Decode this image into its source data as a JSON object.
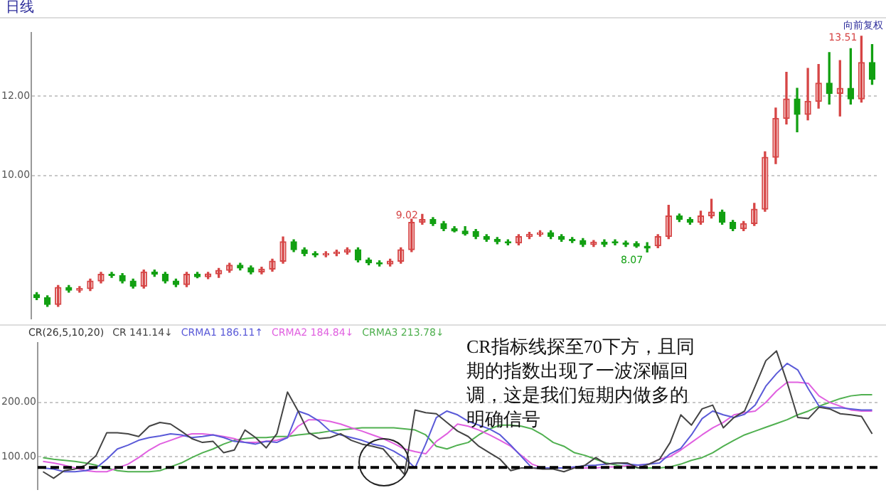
{
  "chart_data": [
    {
      "type": "candlestick",
      "title": "日线",
      "annotations": [
        "向前复权",
        "13.51",
        "9.02",
        "8.07"
      ],
      "categories": [
        null,
        null,
        null,
        null,
        null,
        null,
        null,
        null,
        null,
        null,
        null,
        null,
        null,
        null,
        null,
        null,
        null,
        null,
        null,
        null,
        null,
        null,
        null,
        null,
        null,
        null,
        null,
        null,
        null,
        null,
        null,
        null,
        null,
        null,
        null,
        null,
        null,
        null,
        null,
        null,
        null,
        null,
        null,
        null,
        null,
        null,
        null,
        null,
        null,
        null,
        null,
        null,
        null,
        null,
        null,
        null,
        null,
        null,
        null,
        null,
        null,
        null,
        null,
        null,
        null,
        null,
        null,
        null,
        null,
        null,
        null,
        null,
        null,
        null,
        null,
        null,
        null,
        null,
        null
      ],
      "ohlc": [
        [
          7.0,
          7.05,
          6.87,
          6.92
        ],
        [
          6.92,
          6.97,
          6.7,
          6.75
        ],
        [
          6.75,
          7.23,
          6.7,
          7.18
        ],
        [
          7.18,
          7.23,
          7.06,
          7.11
        ],
        [
          7.11,
          7.2,
          7.06,
          7.15
        ],
        [
          7.15,
          7.39,
          7.1,
          7.34
        ],
        [
          7.34,
          7.56,
          7.29,
          7.51
        ],
        [
          7.51,
          7.56,
          7.43,
          7.48
        ],
        [
          7.48,
          7.53,
          7.29,
          7.34
        ],
        [
          7.34,
          7.39,
          7.16,
          7.21
        ],
        [
          7.21,
          7.62,
          7.16,
          7.57
        ],
        [
          7.57,
          7.62,
          7.46,
          7.51
        ],
        [
          7.51,
          7.56,
          7.29,
          7.34
        ],
        [
          7.34,
          7.39,
          7.2,
          7.25
        ],
        [
          7.25,
          7.56,
          7.2,
          7.51
        ],
        [
          7.51,
          7.56,
          7.42,
          7.45
        ],
        [
          7.45,
          7.56,
          7.4,
          7.52
        ],
        [
          7.52,
          7.66,
          7.43,
          7.61
        ],
        [
          7.61,
          7.79,
          7.56,
          7.74
        ],
        [
          7.74,
          7.79,
          7.62,
          7.67
        ],
        [
          7.67,
          7.72,
          7.52,
          7.57
        ],
        [
          7.57,
          7.69,
          7.52,
          7.64
        ],
        [
          7.64,
          7.89,
          7.59,
          7.84
        ],
        [
          7.84,
          8.45,
          7.79,
          8.33
        ],
        [
          8.33,
          8.38,
          8.08,
          8.13
        ],
        [
          8.13,
          8.18,
          7.98,
          8.03
        ],
        [
          8.03,
          8.08,
          7.95,
          8.0
        ],
        [
          8.0,
          8.08,
          7.95,
          8.03
        ],
        [
          8.03,
          8.12,
          7.98,
          8.07
        ],
        [
          8.07,
          8.18,
          8.02,
          8.13
        ],
        [
          8.13,
          8.18,
          7.82,
          7.87
        ],
        [
          7.87,
          7.92,
          7.75,
          7.8
        ],
        [
          7.8,
          7.85,
          7.72,
          7.77
        ],
        [
          7.77,
          7.89,
          7.72,
          7.84
        ],
        [
          7.84,
          8.18,
          7.79,
          8.13
        ],
        [
          8.13,
          8.9,
          8.08,
          8.82
        ],
        [
          8.82,
          9.02,
          8.77,
          8.89
        ],
        [
          8.89,
          8.94,
          8.74,
          8.79
        ],
        [
          8.79,
          8.84,
          8.61,
          8.66
        ],
        [
          8.66,
          8.71,
          8.58,
          8.6
        ],
        [
          8.6,
          8.71,
          8.5,
          8.53
        ],
        [
          8.59,
          8.64,
          8.41,
          8.46
        ],
        [
          8.46,
          8.51,
          8.34,
          8.39
        ],
        [
          8.39,
          8.44,
          8.28,
          8.33
        ],
        [
          8.33,
          8.38,
          8.25,
          8.3
        ],
        [
          8.3,
          8.51,
          8.25,
          8.46
        ],
        [
          8.46,
          8.57,
          8.41,
          8.52
        ],
        [
          8.52,
          8.61,
          8.47,
          8.56
        ],
        [
          8.56,
          8.61,
          8.41,
          8.46
        ],
        [
          8.46,
          8.51,
          8.34,
          8.39
        ],
        [
          8.39,
          8.44,
          8.31,
          8.36
        ],
        [
          8.36,
          8.41,
          8.21,
          8.26
        ],
        [
          8.26,
          8.36,
          8.21,
          8.32
        ],
        [
          8.32,
          8.38,
          8.21,
          8.27
        ],
        [
          8.33,
          8.38,
          8.25,
          8.3
        ],
        [
          8.3,
          8.35,
          8.21,
          8.26
        ],
        [
          8.28,
          8.33,
          8.19,
          8.22
        ],
        [
          8.22,
          8.31,
          8.07,
          8.17
        ],
        [
          8.23,
          8.51,
          8.18,
          8.46
        ],
        [
          8.46,
          9.25,
          8.41,
          8.98
        ],
        [
          8.98,
          9.03,
          8.84,
          8.89
        ],
        [
          8.89,
          8.94,
          8.77,
          8.82
        ],
        [
          8.82,
          9.1,
          8.77,
          8.98
        ],
        [
          8.98,
          9.4,
          8.93,
          9.08
        ],
        [
          9.08,
          9.13,
          8.77,
          8.82
        ],
        [
          8.82,
          8.87,
          8.61,
          8.66
        ],
        [
          8.66,
          8.84,
          8.61,
          8.79
        ],
        [
          8.79,
          9.3,
          8.74,
          9.15
        ],
        [
          9.15,
          10.6,
          9.1,
          10.46
        ],
        [
          10.46,
          11.7,
          10.3,
          11.44
        ],
        [
          11.44,
          12.6,
          11.3,
          11.93
        ],
        [
          11.93,
          12.2,
          11.1,
          11.54
        ],
        [
          11.54,
          12.7,
          11.4,
          11.87
        ],
        [
          11.87,
          12.8,
          11.7,
          12.33
        ],
        [
          12.33,
          13.1,
          11.8,
          12.07
        ],
        [
          12.07,
          12.9,
          11.5,
          12.2
        ],
        [
          12.2,
          13.2,
          11.8,
          11.93
        ],
        [
          11.93,
          13.51,
          11.85,
          12.85
        ],
        [
          12.85,
          13.3,
          12.3,
          12.43
        ]
      ],
      "ylim": [
        6.4,
        13.6
      ],
      "yticks": [
        {
          "value": 10,
          "label": "10.00"
        },
        {
          "value": 12,
          "label": "12.00"
        }
      ],
      "grid": "y",
      "tick_labels": "y"
    },
    {
      "type": "line",
      "legend_title": "CR(26,5,10,20)",
      "legend": "top left",
      "annotations": [
        "CR指标线探至70下方，且同期的指数出现了一波深幅回调，这是我们短期内做多的明确信号"
      ],
      "categories": [
        null,
        null,
        null,
        null,
        null,
        null,
        null,
        null,
        null,
        null,
        null,
        null,
        null,
        null,
        null,
        null,
        null,
        null,
        null,
        null,
        null,
        null,
        null,
        null,
        null,
        null,
        null,
        null,
        null,
        null,
        null,
        null,
        null,
        null,
        null,
        null,
        null,
        null,
        null,
        null,
        null,
        null,
        null,
        null,
        null,
        null,
        null,
        null,
        null,
        null,
        null,
        null,
        null,
        null,
        null,
        null,
        null,
        null,
        null,
        null,
        null,
        null,
        null,
        null,
        null,
        null,
        null,
        null,
        null,
        null,
        null,
        null,
        null,
        null,
        null,
        null,
        null,
        null,
        null
      ],
      "series": [
        {
          "name": "CR 141.14↓",
          "color": "#444444",
          "values": [
            72,
            60,
            74,
            77,
            84,
            102,
            144,
            144,
            142,
            137,
            156,
            163,
            160,
            147,
            133,
            126,
            128,
            107,
            112,
            149,
            135,
            116,
            142,
            219,
            184,
            144,
            133,
            135,
            142,
            130,
            123,
            119,
            114,
            91,
            67,
            186,
            181,
            179,
            163,
            147,
            137,
            119,
            107,
            95,
            74,
            79,
            79,
            77,
            77,
            72,
            79,
            84,
            98,
            86,
            88,
            88,
            79,
            86,
            95,
            126,
            177,
            158,
            188,
            195,
            153,
            172,
            184,
            230,
            277,
            295,
            237,
            172,
            170,
            191,
            188,
            179,
            177,
            174,
            142
          ]
        },
        {
          "name": "CRMA1 186.11↑",
          "color": "#5a5ad8",
          "values": [
            79,
            77,
            72,
            72,
            74,
            79,
            95,
            114,
            121,
            130,
            135,
            138,
            142,
            140,
            135,
            137,
            140,
            135,
            128,
            126,
            123,
            128,
            126,
            135,
            184,
            177,
            165,
            147,
            140,
            135,
            130,
            123,
            119,
            110,
            98,
            79,
            123,
            172,
            184,
            177,
            165,
            158,
            151,
            140,
            121,
            100,
            79,
            79,
            79,
            79,
            81,
            83,
            84,
            86,
            88,
            86,
            84,
            86,
            88,
            105,
            115,
            140,
            170,
            184,
            177,
            172,
            178,
            195,
            230,
            253,
            272,
            260,
            225,
            193,
            190,
            190,
            188,
            186,
            186
          ]
        },
        {
          "name": "CRMA2 184.84↓",
          "color": "#e060e0",
          "values": [
            91,
            88,
            84,
            79,
            74,
            72,
            72,
            79,
            86,
            98,
            112,
            123,
            130,
            137,
            142,
            142,
            140,
            137,
            133,
            126,
            126,
            128,
            130,
            135,
            156,
            168,
            168,
            165,
            160,
            153,
            147,
            140,
            133,
            124,
            114,
            109,
            105,
            128,
            142,
            160,
            156,
            149,
            140,
            130,
            119,
            102,
            86,
            79,
            79,
            79,
            79,
            79,
            79,
            81,
            81,
            83,
            84,
            86,
            95,
            100,
            112,
            126,
            140,
            153,
            163,
            177,
            181,
            184,
            200,
            221,
            237,
            237,
            235,
            212,
            200,
            193,
            186,
            184,
            184
          ]
        },
        {
          "name": "CRMA3 213.78↓",
          "color": "#50b050",
          "values": [
            98,
            95,
            93,
            91,
            88,
            84,
            79,
            74,
            72,
            72,
            72,
            74,
            81,
            88,
            98,
            107,
            114,
            123,
            130,
            133,
            135,
            135,
            137,
            137,
            140,
            142,
            144,
            147,
            149,
            151,
            153,
            153,
            153,
            153,
            151,
            149,
            140,
            119,
            114,
            121,
            126,
            140,
            151,
            158,
            158,
            156,
            151,
            140,
            126,
            119,
            107,
            102,
            95,
            88,
            84,
            81,
            79,
            79,
            79,
            81,
            86,
            93,
            98,
            107,
            119,
            130,
            140,
            147,
            154,
            161,
            168,
            177,
            184,
            193,
            200,
            207,
            212,
            214,
            214
          ]
        }
      ],
      "ref_lines": [
        {
          "axis": "y",
          "value": 80,
          "color": "#000000",
          "line_style": "dashed"
        }
      ],
      "ylim": [
        40,
        310
      ],
      "yticks": [
        {
          "value": 100,
          "label": "100.00"
        },
        {
          "value": 200,
          "label": "200.00"
        }
      ],
      "grid": "y",
      "tick_labels": "y"
    }
  ]
}
